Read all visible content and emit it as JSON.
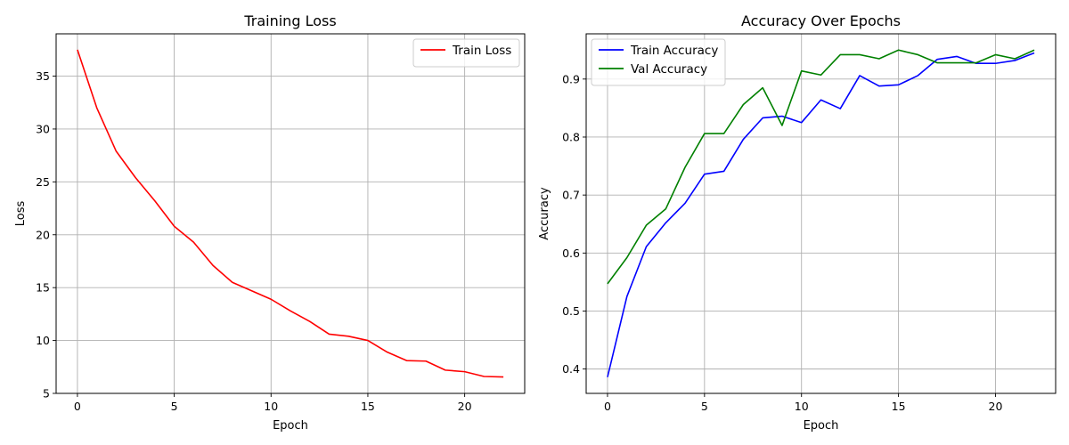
{
  "chart_data": [
    {
      "type": "line",
      "title": "Training Loss",
      "xlabel": "Epoch",
      "ylabel": "Loss",
      "xlim": [
        -1.1,
        23.1
      ],
      "ylim": [
        5,
        39
      ],
      "xticks": [
        0,
        5,
        10,
        15,
        20
      ],
      "yticks": [
        5,
        10,
        15,
        20,
        25,
        30,
        35
      ],
      "grid": true,
      "legend_position": "top-right",
      "x": [
        0,
        1,
        2,
        3,
        4,
        5,
        6,
        7,
        8,
        9,
        10,
        11,
        12,
        13,
        14,
        15,
        16,
        17,
        18,
        19,
        20,
        21,
        22
      ],
      "series": [
        {
          "name": "Train Loss",
          "color": "#ff0000",
          "values": [
            37.5,
            32.0,
            27.9,
            25.4,
            23.2,
            20.8,
            19.3,
            17.1,
            15.5,
            14.7,
            13.9,
            12.8,
            11.8,
            10.6,
            10.4,
            10.0,
            8.9,
            8.1,
            8.05,
            7.2,
            7.05,
            6.6,
            6.55
          ]
        }
      ]
    },
    {
      "type": "line",
      "title": "Accuracy Over Epochs",
      "xlabel": "Epoch",
      "ylabel": "Accuracy",
      "xlim": [
        -1.1,
        23.1
      ],
      "ylim": [
        0.358,
        0.978
      ],
      "xticks": [
        0,
        5,
        10,
        15,
        20
      ],
      "yticks": [
        0.4,
        0.5,
        0.6,
        0.7,
        0.8,
        0.9
      ],
      "grid": true,
      "legend_position": "top-left",
      "x": [
        0,
        1,
        2,
        3,
        4,
        5,
        6,
        7,
        8,
        9,
        10,
        11,
        12,
        13,
        14,
        15,
        16,
        17,
        18,
        19,
        20,
        21,
        22
      ],
      "series": [
        {
          "name": "Train Accuracy",
          "color": "#0000ff",
          "values": [
            0.386,
            0.525,
            0.611,
            0.652,
            0.686,
            0.736,
            0.741,
            0.796,
            0.833,
            0.836,
            0.825,
            0.864,
            0.849,
            0.906,
            0.888,
            0.89,
            0.906,
            0.934,
            0.939,
            0.927,
            0.927,
            0.932,
            0.945
          ]
        },
        {
          "name": "Val Accuracy",
          "color": "#008000",
          "values": [
            0.547,
            0.592,
            0.648,
            0.676,
            0.748,
            0.806,
            0.806,
            0.856,
            0.885,
            0.82,
            0.914,
            0.907,
            0.942,
            0.942,
            0.935,
            0.95,
            0.942,
            0.928,
            0.928,
            0.928,
            0.942,
            0.935,
            0.95
          ]
        }
      ]
    }
  ]
}
